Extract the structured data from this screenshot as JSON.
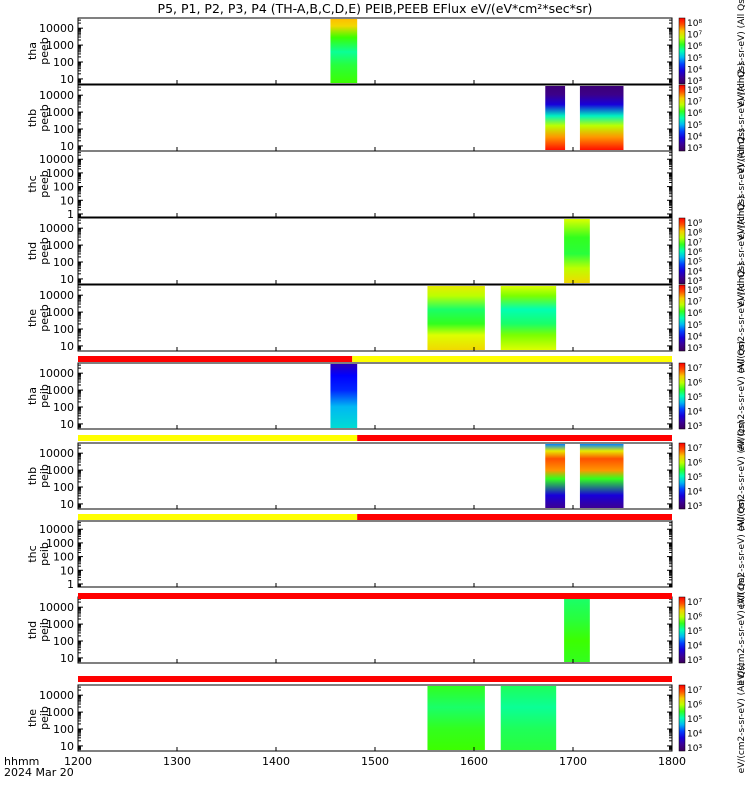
{
  "title": "P5, P1, P2, P3, P4 (TH-A,B,C,D,E) PEIB,PEEB EFlux eV/(eV*cm²*sec*sr)",
  "footer": {
    "time_label": "hhmm",
    "date_label": "2024 Mar 20"
  },
  "x_ticks": [
    "1200",
    "1300",
    "1400",
    "1500",
    "1600",
    "1700",
    "1800"
  ],
  "y_ticks": [
    "10000",
    "1000",
    "100",
    "10",
    "1"
  ],
  "chart_data": {
    "type": "heatmap",
    "title": "P5, P1, P2, P3, P4 (TH-A,B,C,D,E) PEIB,PEEB EFlux eV/(eV*cm²*sec*sr)",
    "xlabel": "hhmm",
    "xlim": [
      1200,
      1800
    ],
    "x_ticks": [
      1200,
      1300,
      1400,
      1500,
      1600,
      1700,
      1800
    ],
    "y_scale": "log",
    "y_ticks": [
      1,
      10,
      100,
      1000,
      10000
    ],
    "colorbar_scale": "log",
    "panels": [
      {
        "ylabel": [
          "tha",
          "peeb"
        ],
        "ylim": [
          5,
          40000
        ],
        "colorbar": {
          "labels": [
            "10⁸",
            "10⁷",
            "10⁶",
            "10⁵",
            "10⁴",
            "10³"
          ],
          "min_exp": 3,
          "max_exp": 8,
          "title": "eV/(cm2-s-sr-eV) (All Qs)"
        },
        "blocks": [
          {
            "t0": 1455,
            "t1": 1482,
            "profile": [
              [
                5,
                0.62
              ],
              [
                60,
                0.58
              ],
              [
                400,
                0.52
              ],
              [
                3000,
                0.62
              ],
              [
                15000,
                0.78
              ],
              [
                40000,
                0.82
              ]
            ]
          }
        ]
      },
      {
        "ylabel": [
          "thb",
          "peeb"
        ],
        "ylim": [
          5,
          40000
        ],
        "colorbar": {
          "labels": [
            "10⁸",
            "10⁷",
            "10⁶",
            "10⁵",
            "10⁴",
            "10³"
          ],
          "min_exp": 3,
          "max_exp": 8,
          "title": "eV/(cm2-s-sr-eV) (All Qs)"
        },
        "blocks": [
          {
            "t0": 1672,
            "t1": 1692,
            "profile": [
              [
                5,
                0.98
              ],
              [
                30,
                0.85
              ],
              [
                150,
                0.7
              ],
              [
                600,
                0.48
              ],
              [
                3000,
                0.2
              ],
              [
                12000,
                0.08
              ],
              [
                40000,
                0.05
              ]
            ]
          },
          {
            "t0": 1707,
            "t1": 1751,
            "profile": [
              [
                5,
                0.98
              ],
              [
                30,
                0.85
              ],
              [
                150,
                0.7
              ],
              [
                600,
                0.48
              ],
              [
                3000,
                0.2
              ],
              [
                12000,
                0.08
              ],
              [
                40000,
                0.05
              ]
            ]
          }
        ]
      },
      {
        "ylabel": [
          "thc",
          "peeb"
        ],
        "ylim": [
          0.6,
          40000
        ],
        "colorbar": {
          "labels": [],
          "title": "eV/(cm2-s-sr-eV) (All Qs)"
        },
        "blocks": []
      },
      {
        "ylabel": [
          "thd",
          "peeb"
        ],
        "ylim": [
          5,
          40000
        ],
        "colorbar": {
          "labels": [
            "10⁹",
            "10⁸",
            "10⁷",
            "10⁶",
            "10⁵",
            "10⁴",
            "10³"
          ],
          "min_exp": 3,
          "max_exp": 9,
          "title": "eV/(cm2-s-sr-eV) (All Qs)"
        },
        "blocks": [
          {
            "t0": 1691,
            "t1": 1717,
            "profile": [
              [
                5,
                0.78
              ],
              [
                40,
                0.7
              ],
              [
                300,
                0.58
              ],
              [
                3000,
                0.6
              ],
              [
                40000,
                0.72
              ]
            ]
          }
        ]
      },
      {
        "ylabel": [
          "the",
          "peeb"
        ],
        "ylim": [
          5,
          40000
        ],
        "colorbar": {
          "labels": [
            "10⁸",
            "10⁷",
            "10⁶",
            "10⁵",
            "10⁴",
            "10³"
          ],
          "min_exp": 3,
          "max_exp": 8,
          "title": "eV/(cm2-s-sr-eV) (All Qs)"
        },
        "blocks": [
          {
            "t0": 1553,
            "t1": 1611,
            "profile": [
              [
                5,
                0.78
              ],
              [
                40,
                0.72
              ],
              [
                200,
                0.6
              ],
              [
                1500,
                0.55
              ],
              [
                10000,
                0.7
              ],
              [
                40000,
                0.75
              ]
            ]
          },
          {
            "t0": 1627,
            "t1": 1683,
            "profile": [
              [
                5,
                0.72
              ],
              [
                40,
                0.66
              ],
              [
                200,
                0.55
              ],
              [
                1500,
                0.5
              ],
              [
                10000,
                0.66
              ],
              [
                40000,
                0.72
              ]
            ]
          }
        ]
      },
      {
        "ylabel": [
          "tha",
          "peib"
        ],
        "ylim": [
          5,
          40000
        ],
        "colorbar": {
          "labels": [
            "10⁷",
            "10⁶",
            "10⁵",
            "10⁴",
            "10³"
          ],
          "min_exp": 3,
          "max_exp": 7,
          "title": "eV/(cm2-s-sr-eV) (All Qs)"
        },
        "blocks": [
          {
            "t0": 1455,
            "t1": 1482,
            "profile": [
              [
                5,
                0.45
              ],
              [
                100,
                0.4
              ],
              [
                1000,
                0.28
              ],
              [
                8000,
                0.25
              ],
              [
                40000,
                0.15
              ]
            ]
          }
        ]
      },
      {
        "ylabel": [
          "thb",
          "peib"
        ],
        "ylim": [
          5,
          40000
        ],
        "colorbar": {
          "labels": [
            "10⁷",
            "10⁶",
            "10⁵",
            "10⁴",
            "10³"
          ],
          "min_exp": 3,
          "max_exp": 7,
          "title": "eV/(cm2-s-sr-eV) (All Qs)"
        },
        "blocks": [
          {
            "t0": 1672,
            "t1": 1692,
            "profile": [
              [
                5,
                0.1
              ],
              [
                30,
                0.2
              ],
              [
                300,
                0.6
              ],
              [
                1000,
                0.85
              ],
              [
                5000,
                0.9
              ],
              [
                15000,
                0.75
              ],
              [
                40000,
                0.35
              ]
            ]
          },
          {
            "t0": 1707,
            "t1": 1751,
            "profile": [
              [
                5,
                0.1
              ],
              [
                30,
                0.2
              ],
              [
                300,
                0.6
              ],
              [
                1000,
                0.85
              ],
              [
                5000,
                0.9
              ],
              [
                15000,
                0.75
              ],
              [
                40000,
                0.35
              ]
            ]
          }
        ]
      },
      {
        "ylabel": [
          "thc",
          "peib"
        ],
        "ylim": [
          0.6,
          40000
        ],
        "colorbar": {
          "labels": [],
          "title": "eV/(cm2-s-sr-eV) (All Qs)"
        },
        "blocks": []
      },
      {
        "ylabel": [
          "thd",
          "peib"
        ],
        "ylim": [
          5,
          40000
        ],
        "colorbar": {
          "labels": [
            "10⁷",
            "10⁶",
            "10⁵",
            "10⁴",
            "10³"
          ],
          "min_exp": 3,
          "max_exp": 7,
          "title": "eV/(cm2-s-sr-eV) (All Qs)"
        },
        "blocks": [
          {
            "t0": 1691,
            "t1": 1717,
            "profile": [
              [
                5,
                0.6
              ],
              [
                100,
                0.62
              ],
              [
                2000,
                0.58
              ],
              [
                40000,
                0.55
              ]
            ]
          }
        ]
      },
      {
        "ylabel": [
          "the",
          "peib"
        ],
        "ylim": [
          5,
          40000
        ],
        "colorbar": {
          "labels": [
            "10⁷",
            "10⁶",
            "10⁵",
            "10⁴",
            "10³"
          ],
          "min_exp": 3,
          "max_exp": 7,
          "title": "eV/(cm2-s-sr-eV) (All Qs)"
        },
        "blocks": [
          {
            "t0": 1553,
            "t1": 1611,
            "profile": [
              [
                5,
                0.62
              ],
              [
                100,
                0.6
              ],
              [
                2000,
                0.55
              ],
              [
                40000,
                0.6
              ]
            ]
          },
          {
            "t0": 1627,
            "t1": 1683,
            "profile": [
              [
                5,
                0.58
              ],
              [
                100,
                0.56
              ],
              [
                2000,
                0.52
              ],
              [
                40000,
                0.56
              ]
            ]
          }
        ]
      }
    ],
    "mode_bars": [
      {
        "segments": [
          {
            "t0": 1200,
            "t1": 1477,
            "state": "red"
          },
          {
            "t0": 1477,
            "t1": 1800,
            "state": "yellow"
          }
        ]
      },
      {
        "segments": [
          {
            "t0": 1200,
            "t1": 1482,
            "state": "yellow"
          },
          {
            "t0": 1482,
            "t1": 1800,
            "state": "red"
          }
        ]
      },
      {
        "segments": [
          {
            "t0": 1200,
            "t1": 1482,
            "state": "yellow"
          },
          {
            "t0": 1482,
            "t1": 1800,
            "state": "red"
          }
        ]
      },
      {
        "segments": [
          {
            "t0": 1200,
            "t1": 1800,
            "state": "red"
          }
        ]
      },
      {
        "segments": [
          {
            "t0": 1200,
            "t1": 1800,
            "state": "red"
          }
        ]
      }
    ],
    "colors": {
      "red": "#ff0000",
      "yellow": "#ffff00"
    }
  }
}
